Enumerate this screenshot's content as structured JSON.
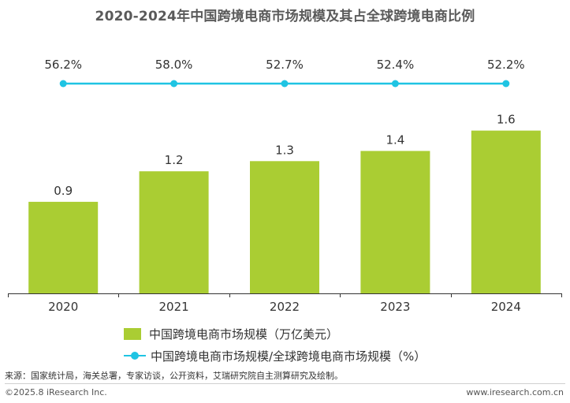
{
  "colors": {
    "bar": "#aacd33",
    "line": "#1fc4e3",
    "axis": "#333333",
    "text": "#333333"
  },
  "chart_data": {
    "type": "bar+line",
    "title": "2020-2024年中国跨境电商市场规模及其占全球跨境电商比例",
    "categories": [
      "2020",
      "2021",
      "2022",
      "2023",
      "2024"
    ],
    "series": [
      {
        "name": "中国跨境电商市场规模（万亿美元）",
        "type": "bar",
        "values": [
          0.9,
          1.2,
          1.3,
          1.4,
          1.6
        ],
        "labels": [
          "0.9",
          "1.2",
          "1.3",
          "1.4",
          "1.6"
        ]
      },
      {
        "name": "中国跨境电商市场规模/全球跨境电商市场规模（%）",
        "type": "line",
        "values": [
          56.2,
          58.0,
          52.7,
          52.4,
          52.2
        ],
        "labels": [
          "56.2%",
          "58.0%",
          "52.7%",
          "52.4%",
          "52.2%"
        ]
      }
    ],
    "bar_axis_range": [
      0,
      1.75
    ],
    "grid": false,
    "legend_position": "bottom"
  },
  "source": "来源：国家统计局，海关总署，专家访谈，公开资料，艾瑞研究院自主测算研究及绘制。",
  "footer": {
    "copyright": "©2025.8 iResearch Inc.",
    "website": "www.iresearch.com.cn"
  }
}
